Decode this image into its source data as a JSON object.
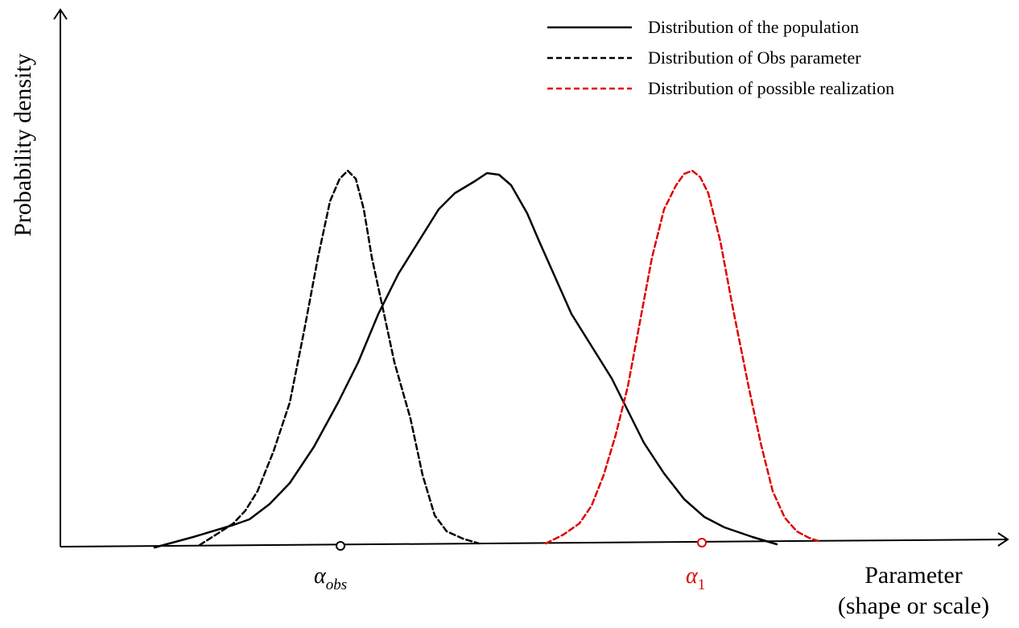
{
  "axes": {
    "y_label": "Probability density",
    "x_label_lines": [
      "Parameter",
      "(shape or scale)"
    ]
  },
  "legend": [
    {
      "label": "Distribution of the population"
    },
    {
      "label": "Distribution of Obs parameter"
    },
    {
      "label": "Distribution of possible realization"
    }
  ],
  "markers": [
    {
      "symbol": "α",
      "subscript": "obs"
    },
    {
      "symbol": "α",
      "subscript": "1"
    }
  ]
}
